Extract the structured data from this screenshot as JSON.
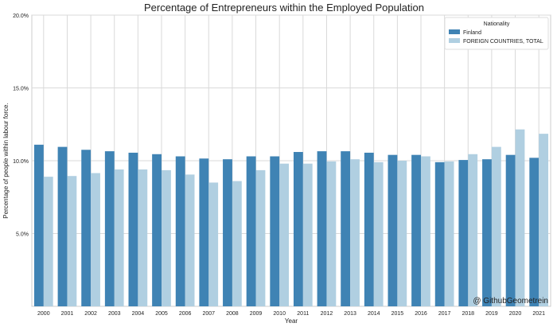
{
  "chart_data": {
    "type": "bar",
    "title": "Percentage of Entrepreneurs within the Employed Population",
    "xlabel": "Year",
    "ylabel": "Percentage of people within labour force.",
    "ylim": [
      0,
      20
    ],
    "yticks": [
      5,
      10,
      15,
      20
    ],
    "ytick_labels": [
      "5.0%",
      "10.0%",
      "15.0%",
      "20.0%"
    ],
    "grid": true,
    "legend_title": "Nationality",
    "legend_position": "top-right",
    "watermark": "@ GithubGeometrein",
    "categories": [
      "2000",
      "2001",
      "2002",
      "2003",
      "2004",
      "2005",
      "2006",
      "2007",
      "2008",
      "2009",
      "2010",
      "2011",
      "2012",
      "2013",
      "2014",
      "2015",
      "2016",
      "2017",
      "2018",
      "2019",
      "2020",
      "2021"
    ],
    "series": [
      {
        "name": "Finland",
        "color": "#3f83b4",
        "values": [
          11.1,
          10.95,
          10.75,
          10.65,
          10.55,
          10.45,
          10.3,
          10.15,
          10.1,
          10.3,
          10.3,
          10.6,
          10.65,
          10.65,
          10.55,
          10.4,
          10.4,
          9.9,
          10.05,
          10.1,
          10.4,
          10.2
        ]
      },
      {
        "name": "FOREIGN COUNTRIES, TOTAL",
        "color": "#b0cfe1",
        "values": [
          8.9,
          8.95,
          9.15,
          9.4,
          9.4,
          9.35,
          9.05,
          8.5,
          8.6,
          9.35,
          9.8,
          9.8,
          9.95,
          10.1,
          9.9,
          10.0,
          10.3,
          9.95,
          10.45,
          10.95,
          12.15,
          11.85
        ]
      }
    ]
  }
}
